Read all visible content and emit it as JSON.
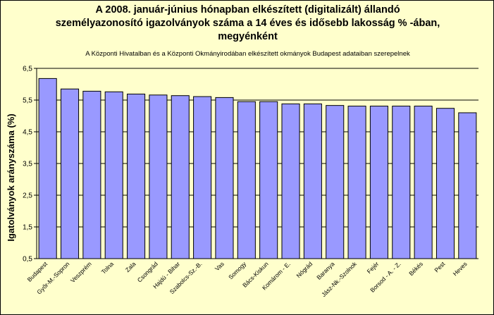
{
  "chart_data": {
    "type": "bar",
    "title_lines": [
      "A 2008. január-június hónapban elkészített (digitalizált) állandó",
      "személyazonosító igazolványok száma a 14 éves és idősebb lakosság % -ában,",
      "megyénként"
    ],
    "subtitle": "A  Központi Hivatalban  és  a Központi Okmányirodában elkészített  okmányok Budapest adataiban szerepelnek",
    "xlabel": "",
    "ylabel": "Igatolványok arányszáma (%)",
    "ylim": [
      0.5,
      6.5
    ],
    "yticks": [
      "0,5",
      "1,5",
      "2,5",
      "3,5",
      "4,5",
      "5,5",
      "6,5"
    ],
    "grid": true,
    "legend": "none",
    "categories": [
      "Budapest",
      "Győr-M.-Sopron",
      "Veszprém",
      "Tolna",
      "Zala",
      "Csongrád",
      "Hajdú - Bihar",
      "Szabolcs-Sz.-B.",
      "Vas",
      "Somogy",
      "Bács-Kiskun",
      "Komárom - E.",
      "Nógrád",
      "Baranya",
      "Jász-Nk.-Szolnok",
      "Fejér",
      "Borsod - A. - Z.",
      "Békés",
      "Pest",
      "Heves"
    ],
    "values": [
      6.18,
      5.85,
      5.78,
      5.76,
      5.69,
      5.66,
      5.64,
      5.61,
      5.58,
      5.45,
      5.45,
      5.38,
      5.38,
      5.33,
      5.31,
      5.31,
      5.31,
      5.31,
      5.24,
      5.1
    ],
    "colors": {
      "bar_fill": "#9999ff",
      "bar_stroke": "#000000",
      "plot_bg": "#ffffcc",
      "grid": "#000000"
    }
  }
}
